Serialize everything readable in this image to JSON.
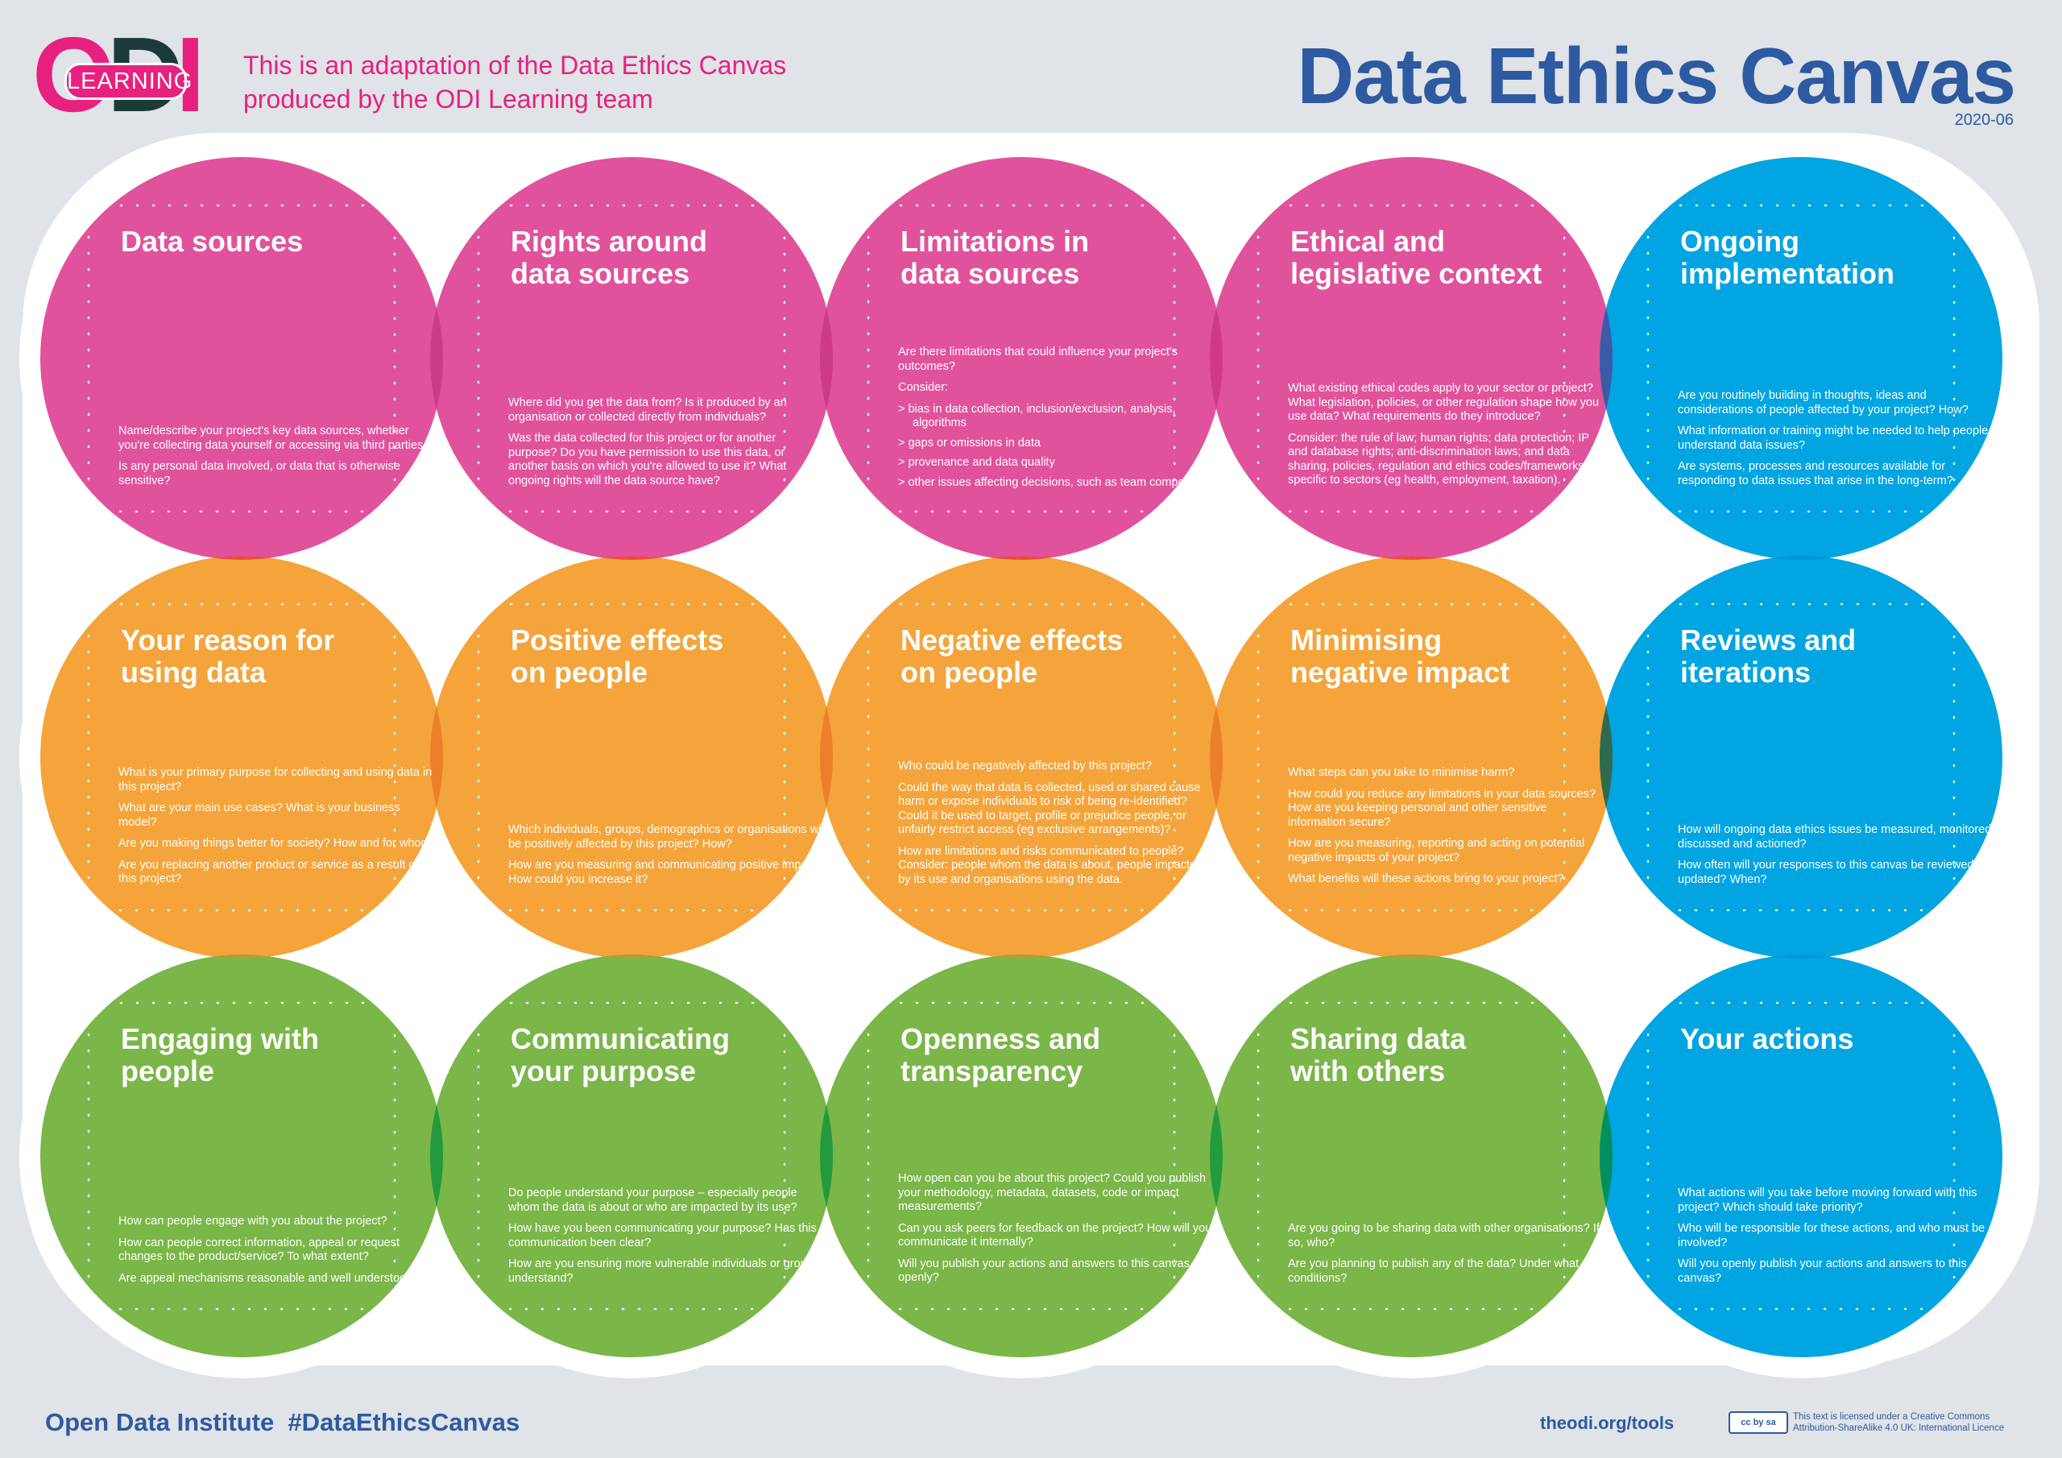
{
  "header": {
    "logo_badge": "LEARNING",
    "logo_name": "ODI Learning logo",
    "adaptation_line1": "This is an adaptation of the Data Ethics Canvas",
    "adaptation_line2": "produced by the ODI Learning team",
    "title": "Data Ethics Canvas",
    "version": "2020-06"
  },
  "colors": {
    "pink": "#e0529c",
    "orange": "#f4a43a",
    "green": "#7ab648",
    "blue": "#00a5e1",
    "title_blue": "#2d5aa0",
    "magenta_text": "#e8207e"
  },
  "sections": [
    {
      "color": "pink",
      "title": [
        "Data sources"
      ],
      "body": [
        "Name/describe your project's key data sources, whether you're collecting data yourself or accessing via third parties.",
        "Is any personal data involved, or data that is otherwise sensitive?"
      ]
    },
    {
      "color": "pink",
      "title": [
        "Rights around",
        "data sources"
      ],
      "body": [
        "Where did you get the data from? Is it produced by an organisation or collected directly from individuals?",
        "Was the data collected for this project or for another purpose? Do you have permission to use this data, or another basis on which you're allowed to use it? What ongoing rights will the data source have?"
      ]
    },
    {
      "color": "pink",
      "title": [
        "Limitations in",
        "data sources"
      ],
      "body": [
        "Are there limitations that could influence your project's outcomes?",
        "Consider:",
        ">   bias in data collection, inclusion/exclusion, analysis, algorithms",
        ">   gaps or omissions in data",
        ">   provenance and data quality",
        ">   other issues affecting decisions, such as team composition"
      ]
    },
    {
      "color": "pink",
      "title": [
        "Ethical and",
        "legislative context"
      ],
      "body": [
        "What existing ethical codes apply to your sector or project? What legislation, policies, or other regulation shape how you use data? What requirements do they introduce?",
        "Consider: the rule of law; human rights; data protection; IP and database rights; anti-discrimination laws; and data sharing, policies, regulation and ethics codes/frameworks specific to sectors (eg health, employment, taxation)."
      ]
    },
    {
      "color": "blue",
      "title": [
        "Ongoing",
        "implementation"
      ],
      "body": [
        "Are you routinely building in thoughts, ideas and considerations of people affected by your project? How?",
        "What information or training might be needed to help people understand data issues?",
        "Are systems, processes and resources available for responding to data issues that arise in the long-term?"
      ]
    },
    {
      "color": "orange",
      "title": [
        "Your reason for",
        "using data"
      ],
      "body": [
        "What is your primary purpose for collecting and using data in this project?",
        "What are your main use cases? What is your business model?",
        "Are you making things better for society? How and for whom?",
        "Are you replacing another product or service as a result of this project?"
      ]
    },
    {
      "color": "orange",
      "title": [
        "Positive effects",
        "on people"
      ],
      "body": [
        "Which individuals, groups, demographics or organisations will be positively affected by this project? How?",
        "How are you measuring and communicating positive impact? How could you increase it?"
      ]
    },
    {
      "color": "orange",
      "title": [
        "Negative effects",
        "on people"
      ],
      "body": [
        "Who could be negatively affected by this project?",
        "Could the way that data is collected, used or shared cause harm or expose individuals to risk of being re-identified? Could it be used to target, profile or prejudice people, or unfairly restrict access (eg exclusive arrangements)?",
        "How are limitations and risks communicated to people? Consider: people whom the data is about, people impacted by its use and organisations using the data."
      ]
    },
    {
      "color": "orange",
      "title": [
        "Minimising",
        "negative impact"
      ],
      "body": [
        "What steps can you take to minimise harm?",
        "How could you reduce any limitations in your data sources? How are you keeping personal and other sensitive information secure?",
        "How are you measuring, reporting and acting on potential negative impacts of your project?",
        "What benefits will these actions bring to your project?"
      ]
    },
    {
      "color": "blue",
      "title": [
        "Reviews and",
        "iterations"
      ],
      "body": [
        "How will ongoing data ethics issues be measured, monitored, discussed and actioned?",
        "How often will your responses to this canvas be reviewed or updated? When?"
      ]
    },
    {
      "color": "green",
      "title": [
        "Engaging with",
        "people"
      ],
      "body": [
        "How can people engage with you about the project?",
        "How can people correct information, appeal or request changes to the product/service? To what extent?",
        "Are appeal mechanisms reasonable and well understood?"
      ]
    },
    {
      "color": "green",
      "title": [
        "Communicating",
        "your purpose"
      ],
      "body": [
        "Do people understand your purpose – especially people whom the data is about or who are impacted by its use?",
        "How have you been communicating your purpose? Has this communication been clear?",
        "How are you ensuring more vulnerable individuals or groups understand?"
      ]
    },
    {
      "color": "green",
      "title": [
        "Openness and",
        "transparency"
      ],
      "body": [
        "How open can you be about this project? Could you publish your methodology, metadata, datasets, code or impact measurements?",
        "Can you ask peers for feedback on the project? How will you communicate it internally?",
        "Will you publish your actions and answers to this canvas openly?"
      ]
    },
    {
      "color": "green",
      "title": [
        "Sharing data",
        "with others"
      ],
      "body": [
        "Are you going to be sharing data with other organisations? If so, who?",
        "Are you planning to publish any of the data? Under what conditions?"
      ]
    },
    {
      "color": "blue",
      "title": [
        "Your actions"
      ],
      "body": [
        "What actions will you take before moving forward with this project? Which should take priority?",
        "Who will be responsible for these actions, and who must be involved?",
        "Will you openly publish your actions and answers to this canvas?"
      ]
    }
  ],
  "footer": {
    "org": "Open Data Institute",
    "hashtag": "#DataEthicsCanvas",
    "url": "theodi.org/tools",
    "cc_badge": "cc by sa",
    "license_line1": "This text is licensed under a Creative Commons",
    "license_line2": "Attribution-ShareAlike 4.0 UK: International Licence"
  }
}
